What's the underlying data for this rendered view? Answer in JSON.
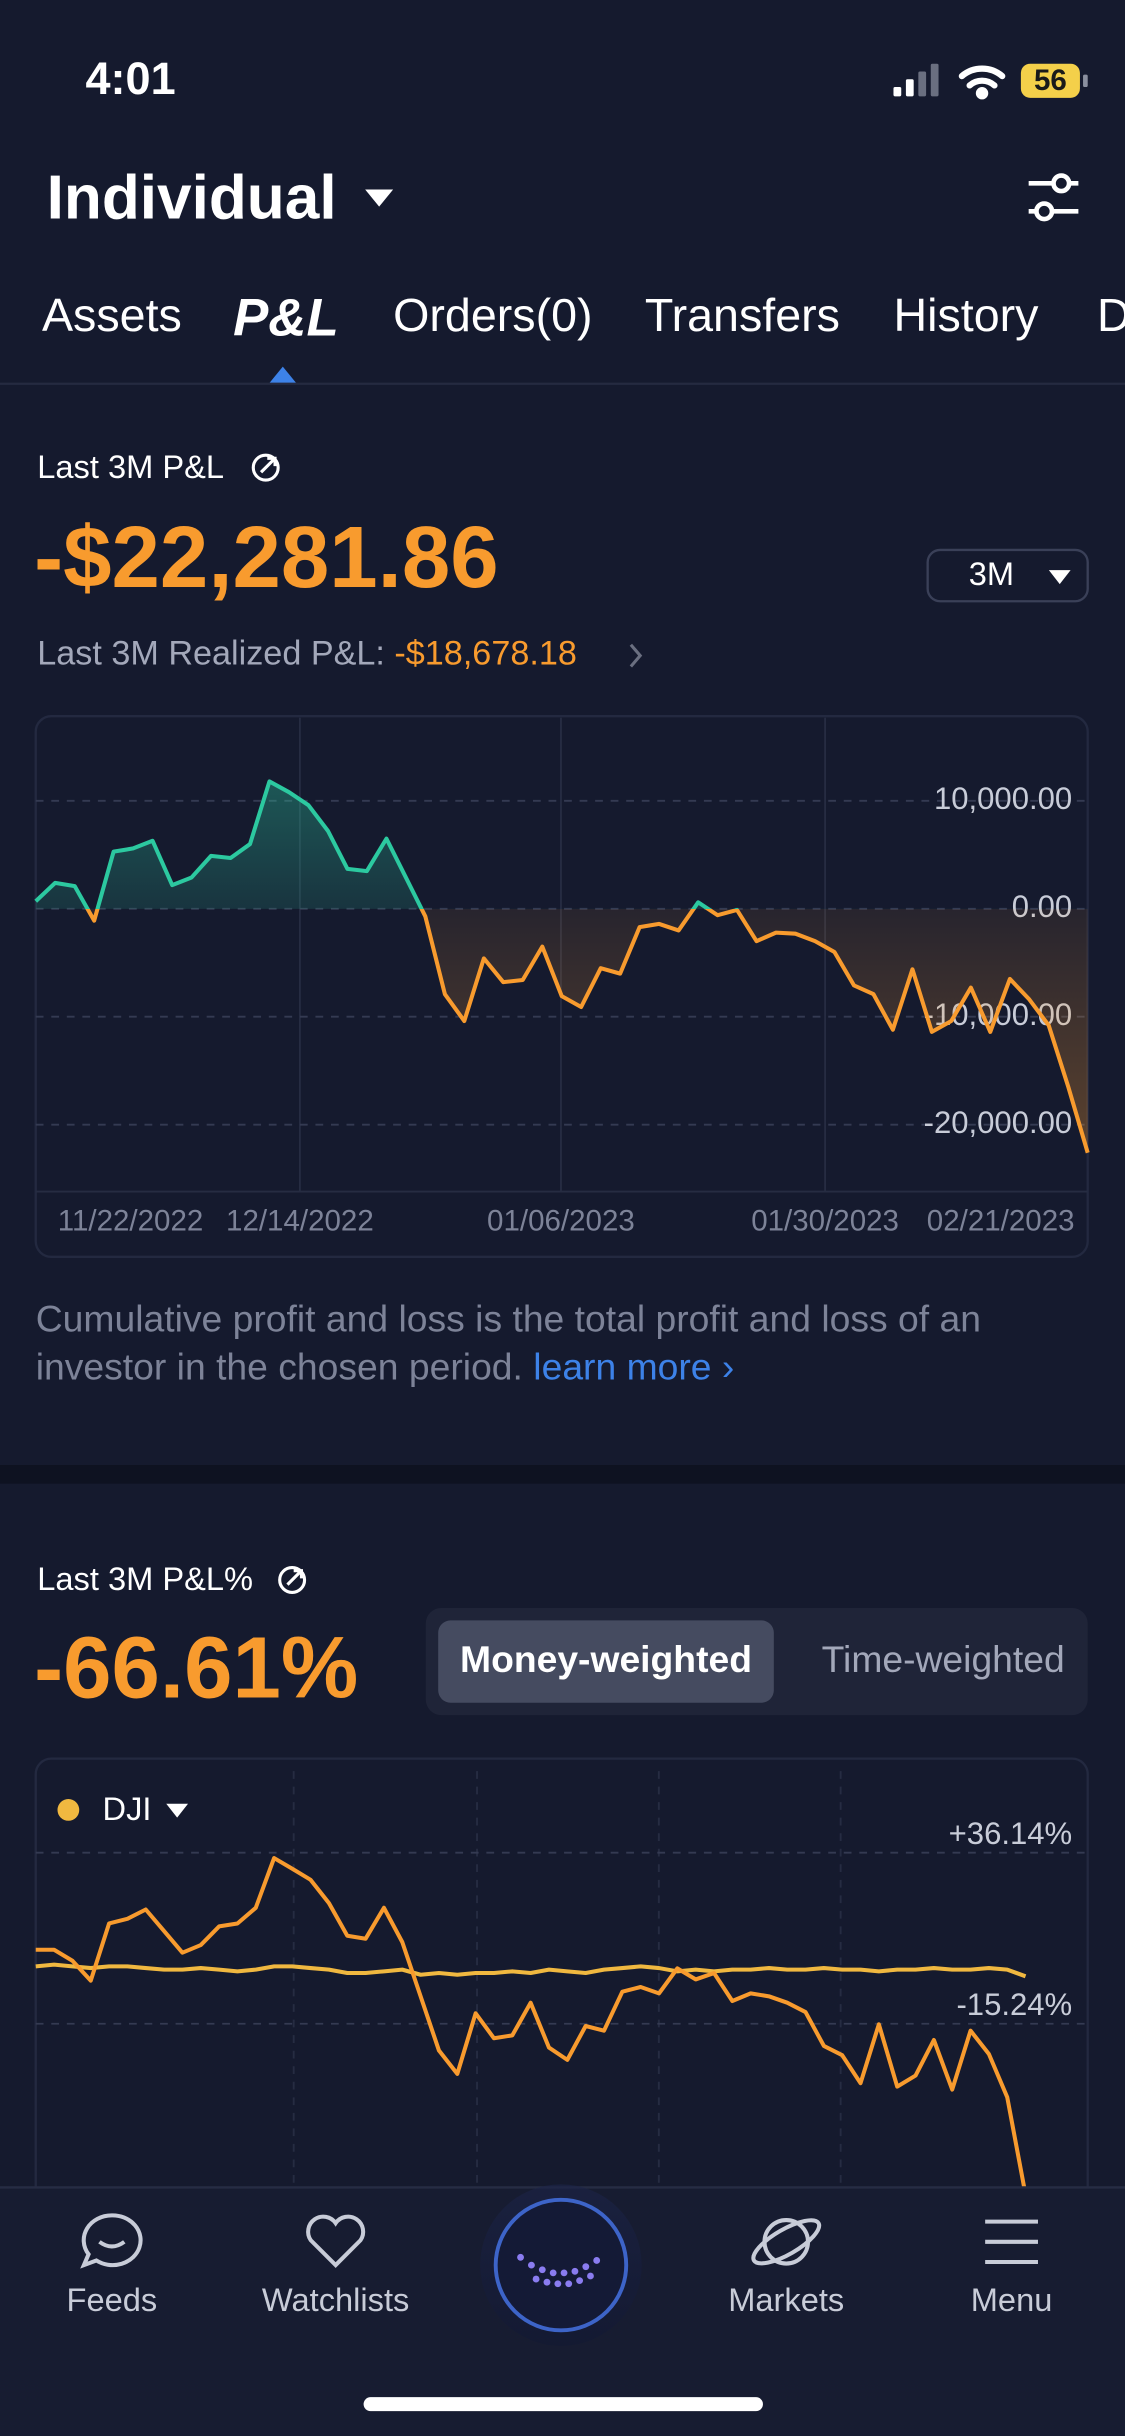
{
  "status_bar": {
    "time": "4:01",
    "battery": "56"
  },
  "header": {
    "title": "Individual"
  },
  "tabs": [
    "Assets",
    "P&L",
    "Orders(0)",
    "Transfers",
    "History",
    "D"
  ],
  "pnl": {
    "label": "Last 3M P&L",
    "value": "-$22,281.86",
    "period": "3M",
    "realized_label": "Last 3M Realized P&L:",
    "realized_value": "-$18,678.18",
    "note": "Cumulative profit and loss is the total profit and loss of an investor in the chosen period.",
    "learn_more": "learn more"
  },
  "pnl_pct": {
    "label": "Last 3M P&L%",
    "value": "-66.61%",
    "modes": [
      "Money-weighted",
      "Time-weighted"
    ]
  },
  "chart_data": [
    {
      "type": "line",
      "color_positive": "#2cc9a0",
      "color_negative": "#f89b2e",
      "values": [
        700,
        2400,
        2100,
        -1100,
        5300,
        5600,
        6300,
        2200,
        2900,
        4900,
        4700,
        6000,
        11800,
        10800,
        9600,
        7200,
        3700,
        3500,
        6500,
        2900,
        -700,
        -7900,
        -10400,
        -4600,
        -6800,
        -6600,
        -3500,
        -8100,
        -9100,
        -5500,
        -6000,
        -1700,
        -1400,
        -2000,
        600,
        -600,
        -100,
        -3000,
        -2200,
        -2300,
        -3000,
        -4000,
        -7100,
        -7900,
        -11200,
        -5600,
        -11400,
        -10400,
        -7300,
        -11400,
        -6500,
        -8400,
        -10800,
        -16500,
        -22600
      ],
      "ylim": [
        -26200,
        17700
      ],
      "yticks": [
        {
          "value": 10000,
          "label": "10,000.00"
        },
        {
          "value": 0,
          "label": "0.00"
        },
        {
          "value": -10000,
          "label": "-10,000.00"
        },
        {
          "value": -20000,
          "label": "-20,000.00"
        }
      ],
      "x_tick_labels": [
        "11/22/2022",
        "12/14/2022",
        "01/06/2023",
        "01/30/2023",
        "02/21/2023"
      ],
      "grid": true
    },
    {
      "type": "line",
      "series": [
        {
          "name": "DJI",
          "color": "#f0b840",
          "values": [
            2,
            2.5,
            2,
            1.5,
            2,
            2,
            1.5,
            1,
            1,
            1.5,
            1,
            0.5,
            1,
            2,
            2,
            1.5,
            1,
            0,
            0,
            0.5,
            1,
            -0.5,
            0,
            -0.5,
            0,
            0,
            0.5,
            0,
            1,
            0.5,
            0,
            1,
            1.5,
            2,
            1.5,
            0.5,
            1,
            0.5,
            1,
            1,
            1.5,
            1,
            1,
            1.5,
            1,
            1,
            0.5,
            1,
            1,
            1.5,
            1,
            1,
            1.5,
            1,
            -1
          ]
        },
        {
          "color": "#f89b2e",
          "values": [
            7,
            7,
            3.7,
            -2.3,
            14.9,
            16.3,
            19.1,
            12.6,
            6.1,
            8.4,
            14,
            14.9,
            19.6,
            34.5,
            31.3,
            28,
            21,
            11.2,
            10.3,
            19.6,
            9.3,
            -7,
            -23.3,
            -30.3,
            -12.1,
            -19.6,
            -18.7,
            -8.9,
            -22.4,
            -26.1,
            -15.9,
            -17.3,
            -5.6,
            -4.2,
            -6.1,
            1.4,
            -1.9,
            0,
            -8.4,
            -6.1,
            -7,
            -8.9,
            -11.7,
            -21.9,
            -24.7,
            -33.1,
            -15.4,
            -34.1,
            -30.8,
            -20.1,
            -35,
            -17.3,
            -24.3,
            -37.3,
            -66.6
          ]
        }
      ],
      "ylim": [
        -70,
        60
      ],
      "yticks": [
        {
          "value": 36.14,
          "label": "+36.14%"
        },
        {
          "value": -15.24,
          "label": "-15.24%"
        }
      ],
      "grid": true
    }
  ],
  "nav": [
    "Feeds",
    "Watchlists",
    "Markets",
    "Menu"
  ]
}
